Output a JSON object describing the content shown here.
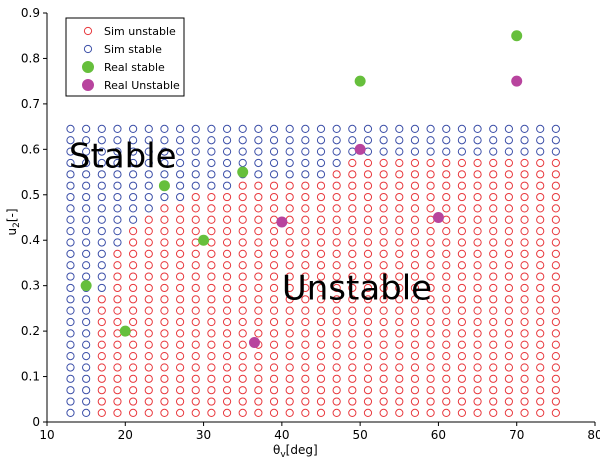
{
  "chart_data": {
    "type": "scatter",
    "xlabel": "θ",
    "xlabel_sub": "v",
    "xlabel_unit": "[deg]",
    "ylabel": "u",
    "ylabel_sub": "2",
    "ylabel_unit": "[-]",
    "xlim": [
      10,
      80
    ],
    "ylim": [
      0,
      0.9
    ],
    "x_ticks": [
      "10",
      "20",
      "30",
      "40",
      "50",
      "60",
      "70",
      "80"
    ],
    "y_ticks": [
      "0",
      "0.1",
      "0.2",
      "0.3",
      "0.4",
      "0.5",
      "0.6",
      "0.7",
      "0.8",
      "0.9"
    ],
    "grid": false,
    "legend_position": "top-left",
    "legend": [
      {
        "label": "Sim unstable",
        "color": "#e8383d",
        "marker": "open-circle"
      },
      {
        "label": "Sim stable",
        "color": "#3c4fa8",
        "marker": "open-circle"
      },
      {
        "label": "Real stable",
        "color": "#66bf3c",
        "marker": "filled-circle"
      },
      {
        "label": "Real Unstable",
        "color": "#b8449e",
        "marker": "filled-circle"
      }
    ],
    "region_labels": {
      "stable": "Stable",
      "unstable": "Unstable"
    },
    "sim_grid": {
      "x_start": 13,
      "x_step": 2,
      "x_count": 32,
      "y_start": 0.02,
      "y_step": 0.025,
      "y_count": 26,
      "boundary": [
        {
          "x": 13,
          "u_max_unstable": null
        },
        {
          "x": 15,
          "u_max_unstable": null
        },
        {
          "x": 17,
          "u_max_unstable": 0.27
        },
        {
          "x": 19,
          "u_max_unstable": 0.37
        },
        {
          "x": 21,
          "u_max_unstable": 0.42
        },
        {
          "x": 23,
          "u_max_unstable": 0.45
        },
        {
          "x": 25,
          "u_max_unstable": 0.47
        },
        {
          "x": 27,
          "u_max_unstable": 0.47
        },
        {
          "x": 29,
          "u_max_unstable": 0.5
        },
        {
          "x": 31,
          "u_max_unstable": 0.5
        },
        {
          "x": 33,
          "u_max_unstable": 0.5
        },
        {
          "x": 35,
          "u_max_unstable": 0.52
        },
        {
          "x": 37,
          "u_max_unstable": 0.52
        },
        {
          "x": 39,
          "u_max_unstable": 0.52
        },
        {
          "x": 41,
          "u_max_unstable": 0.52
        },
        {
          "x": 43,
          "u_max_unstable": 0.52
        },
        {
          "x": 45,
          "u_max_unstable": 0.52
        },
        {
          "x": 47,
          "u_max_unstable": 0.55
        },
        {
          "x": 49,
          "u_max_unstable": 0.57
        },
        {
          "x": 51,
          "u_max_unstable": 0.57
        },
        {
          "x": 53,
          "u_max_unstable": 0.57
        },
        {
          "x": 55,
          "u_max_unstable": 0.57
        },
        {
          "x": 57,
          "u_max_unstable": 0.57
        },
        {
          "x": 59,
          "u_max_unstable": 0.57
        },
        {
          "x": 61,
          "u_max_unstable": 0.57
        },
        {
          "x": 63,
          "u_max_unstable": 0.57
        },
        {
          "x": 65,
          "u_max_unstable": 0.57
        },
        {
          "x": 67,
          "u_max_unstable": 0.57
        },
        {
          "x": 69,
          "u_max_unstable": 0.57
        },
        {
          "x": 71,
          "u_max_unstable": 0.57
        },
        {
          "x": 73,
          "u_max_unstable": 0.57
        },
        {
          "x": 75,
          "u_max_unstable": 0.57
        }
      ]
    },
    "real_stable": [
      {
        "x": 15,
        "y": 0.3
      },
      {
        "x": 20,
        "y": 0.2
      },
      {
        "x": 25,
        "y": 0.52
      },
      {
        "x": 30,
        "y": 0.4
      },
      {
        "x": 35,
        "y": 0.55
      },
      {
        "x": 50,
        "y": 0.75
      },
      {
        "x": 70,
        "y": 0.85
      }
    ],
    "real_unstable": [
      {
        "x": 36.5,
        "y": 0.175
      },
      {
        "x": 40,
        "y": 0.44
      },
      {
        "x": 50,
        "y": 0.6
      },
      {
        "x": 60,
        "y": 0.45
      },
      {
        "x": 70,
        "y": 0.75
      }
    ]
  }
}
